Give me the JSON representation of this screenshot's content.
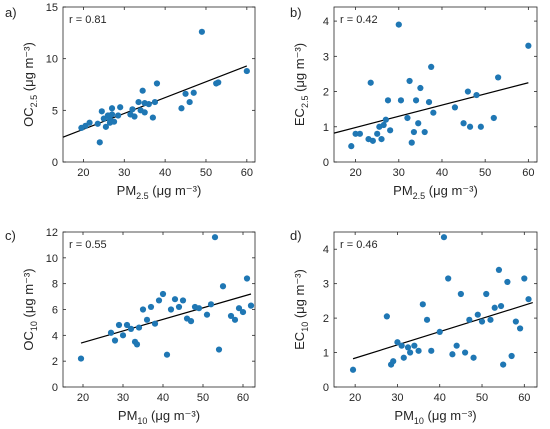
{
  "chart_data": [
    {
      "type": "scatter",
      "panel": "a)",
      "annotation": "r = 0.81",
      "xlabel": {
        "main": "PM",
        "sub": "2.5",
        "unit": " (μg m⁻³)"
      },
      "ylabel": {
        "main": "OC",
        "sub": "2.5",
        "unit": " (μg m⁻³)"
      },
      "xlim": [
        15,
        62
      ],
      "ylim": [
        0,
        15
      ],
      "xticks": [
        "20",
        "30",
        "40",
        "50",
        "60"
      ],
      "xtick_values": [
        20,
        30,
        40,
        50,
        60
      ],
      "yticks": [
        "0",
        "5",
        "10",
        "15"
      ],
      "ytick_values": [
        0,
        5,
        10,
        15
      ],
      "fit_line": [
        [
          15,
          2.4
        ],
        [
          60,
          9.3
        ]
      ],
      "points": [
        [
          19.5,
          3.3
        ],
        [
          20.5,
          3.5
        ],
        [
          21.5,
          3.8
        ],
        [
          23.5,
          3.7
        ],
        [
          24,
          1.9
        ],
        [
          24.5,
          4.9
        ],
        [
          25,
          4.2
        ],
        [
          25.5,
          3.4
        ],
        [
          26,
          4.5
        ],
        [
          26.5,
          4.1
        ],
        [
          26.5,
          3.8
        ],
        [
          27,
          5.2
        ],
        [
          27,
          4.6
        ],
        [
          27.5,
          3.9
        ],
        [
          28.5,
          4.5
        ],
        [
          29,
          5.3
        ],
        [
          31.5,
          4.6
        ],
        [
          32,
          5.1
        ],
        [
          32.5,
          4.4
        ],
        [
          33.5,
          5.8
        ],
        [
          34,
          5.0
        ],
        [
          34.5,
          6.9
        ],
        [
          35,
          5.7
        ],
        [
          35,
          4.8
        ],
        [
          36,
          5.6
        ],
        [
          37,
          4.3
        ],
        [
          37.5,
          5.8
        ],
        [
          38,
          7.6
        ],
        [
          44,
          5.2
        ],
        [
          45,
          6.6
        ],
        [
          46,
          5.8
        ],
        [
          47,
          6.7
        ],
        [
          49,
          12.6
        ],
        [
          52.5,
          7.6
        ],
        [
          53,
          7.7
        ],
        [
          60,
          8.8
        ]
      ]
    },
    {
      "type": "scatter",
      "panel": "b)",
      "annotation": "r = 0.42",
      "xlabel": {
        "main": "PM",
        "sub": "2.5",
        "unit": " (μg m⁻³)"
      },
      "ylabel": {
        "main": "EC",
        "sub": "2.5",
        "unit": " (μg m⁻³)"
      },
      "xlim": [
        15,
        62
      ],
      "ylim": [
        0,
        4.4
      ],
      "xticks": [
        "20",
        "30",
        "40",
        "50",
        "60"
      ],
      "xtick_values": [
        20,
        30,
        40,
        50,
        60
      ],
      "yticks": [
        "0",
        "1",
        "2",
        "3",
        "4"
      ],
      "ytick_values": [
        0,
        1,
        2,
        3,
        4
      ],
      "fit_line": [
        [
          15,
          0.82
        ],
        [
          60,
          2.25
        ]
      ],
      "points": [
        [
          19,
          0.45
        ],
        [
          20,
          0.8
        ],
        [
          21,
          0.8
        ],
        [
          23,
          0.65
        ],
        [
          23.5,
          2.25
        ],
        [
          24,
          0.6
        ],
        [
          25,
          0.8
        ],
        [
          25.5,
          1.0
        ],
        [
          26,
          0.65
        ],
        [
          26.5,
          1.05
        ],
        [
          27,
          1.2
        ],
        [
          27.5,
          1.75
        ],
        [
          28,
          0.9
        ],
        [
          30,
          3.9
        ],
        [
          30.5,
          1.75
        ],
        [
          32,
          1.25
        ],
        [
          32.5,
          2.3
        ],
        [
          33,
          0.55
        ],
        [
          33.5,
          0.85
        ],
        [
          34,
          1.75
        ],
        [
          34.5,
          1.1
        ],
        [
          35,
          2.1
        ],
        [
          36,
          0.85
        ],
        [
          37,
          1.7
        ],
        [
          37.5,
          2.7
        ],
        [
          38,
          1.4
        ],
        [
          43,
          1.55
        ],
        [
          45,
          1.1
        ],
        [
          46,
          2.0
        ],
        [
          46.5,
          1.0
        ],
        [
          48,
          1.9
        ],
        [
          49,
          1.0
        ],
        [
          52,
          1.25
        ],
        [
          53,
          2.4
        ],
        [
          60,
          3.3
        ]
      ]
    },
    {
      "type": "scatter",
      "panel": "c)",
      "annotation": "r = 0.55",
      "xlabel": {
        "main": "PM",
        "sub": "10",
        "unit": " (μg m⁻³)"
      },
      "ylabel": {
        "main": "OC",
        "sub": "10",
        "unit": " (μg m⁻³)"
      },
      "xlim": [
        15,
        63
      ],
      "ylim": [
        0,
        12
      ],
      "xticks": [
        "20",
        "30",
        "40",
        "50",
        "60"
      ],
      "xtick_values": [
        20,
        30,
        40,
        50,
        60
      ],
      "yticks": [
        "0",
        "2",
        "4",
        "6",
        "8",
        "10",
        "12"
      ],
      "ytick_values": [
        0,
        2,
        4,
        6,
        8,
        10,
        12
      ],
      "fit_line": [
        [
          19.5,
          3.4
        ],
        [
          62,
          7.2
        ]
      ],
      "points": [
        [
          19.5,
          2.2
        ],
        [
          27,
          4.2
        ],
        [
          28,
          3.6
        ],
        [
          29,
          4.8
        ],
        [
          30,
          4.0
        ],
        [
          31,
          4.8
        ],
        [
          32,
          4.5
        ],
        [
          33,
          3.5
        ],
        [
          33.5,
          3.3
        ],
        [
          34,
          4.6
        ],
        [
          35,
          6.0
        ],
        [
          36,
          5.2
        ],
        [
          37,
          6.2
        ],
        [
          38,
          4.9
        ],
        [
          39,
          6.7
        ],
        [
          40,
          7.2
        ],
        [
          41,
          2.5
        ],
        [
          42,
          6.0
        ],
        [
          43,
          6.8
        ],
        [
          44,
          6.2
        ],
        [
          45,
          6.7
        ],
        [
          46,
          5.3
        ],
        [
          47,
          5.1
        ],
        [
          48,
          6.2
        ],
        [
          49,
          6.1
        ],
        [
          51,
          5.6
        ],
        [
          52,
          6.4
        ],
        [
          53,
          11.6
        ],
        [
          54,
          2.9
        ],
        [
          55,
          7.8
        ],
        [
          57,
          5.5
        ],
        [
          58,
          5.2
        ],
        [
          59,
          6.1
        ],
        [
          60,
          5.8
        ],
        [
          61,
          8.4
        ],
        [
          62,
          6.3
        ]
      ]
    },
    {
      "type": "scatter",
      "panel": "d)",
      "annotation": "r = 0.46",
      "xlabel": {
        "main": "PM",
        "sub": "10",
        "unit": " (μg m⁻³)"
      },
      "ylabel": {
        "main": "EC",
        "sub": "10",
        "unit": " (μg m⁻³)"
      },
      "xlim": [
        15,
        63
      ],
      "ylim": [
        0,
        4.5
      ],
      "xticks": [
        "20",
        "30",
        "40",
        "50",
        "60"
      ],
      "xtick_values": [
        20,
        30,
        40,
        50,
        60
      ],
      "yticks": [
        "0",
        "1",
        "2",
        "3",
        "4"
      ],
      "ytick_values": [
        0,
        1,
        2,
        3,
        4
      ],
      "fit_line": [
        [
          19.5,
          0.82
        ],
        [
          62,
          2.45
        ]
      ],
      "points": [
        [
          19.5,
          0.5
        ],
        [
          27.5,
          2.05
        ],
        [
          28.5,
          0.65
        ],
        [
          29,
          0.75
        ],
        [
          30,
          1.3
        ],
        [
          31,
          1.2
        ],
        [
          31.5,
          0.85
        ],
        [
          32.5,
          1.15
        ],
        [
          33,
          1.0
        ],
        [
          34,
          1.2
        ],
        [
          35,
          1.05
        ],
        [
          36,
          2.4
        ],
        [
          37,
          1.95
        ],
        [
          38,
          1.05
        ],
        [
          40,
          1.6
        ],
        [
          41,
          4.35
        ],
        [
          42,
          3.15
        ],
        [
          43,
          0.95
        ],
        [
          44,
          1.2
        ],
        [
          45,
          2.7
        ],
        [
          46,
          1.0
        ],
        [
          47,
          1.95
        ],
        [
          48,
          0.85
        ],
        [
          49,
          2.1
        ],
        [
          50,
          1.9
        ],
        [
          51,
          2.7
        ],
        [
          52,
          1.95
        ],
        [
          53,
          2.3
        ],
        [
          54,
          3.4
        ],
        [
          54.5,
          2.35
        ],
        [
          55,
          0.65
        ],
        [
          56,
          3.05
        ],
        [
          57,
          0.9
        ],
        [
          58,
          1.9
        ],
        [
          59,
          1.7
        ],
        [
          60,
          3.15
        ],
        [
          61,
          2.55
        ]
      ]
    }
  ],
  "colors": {
    "marker": "#1f77b4",
    "line": "#000000",
    "axis": "#262626"
  }
}
